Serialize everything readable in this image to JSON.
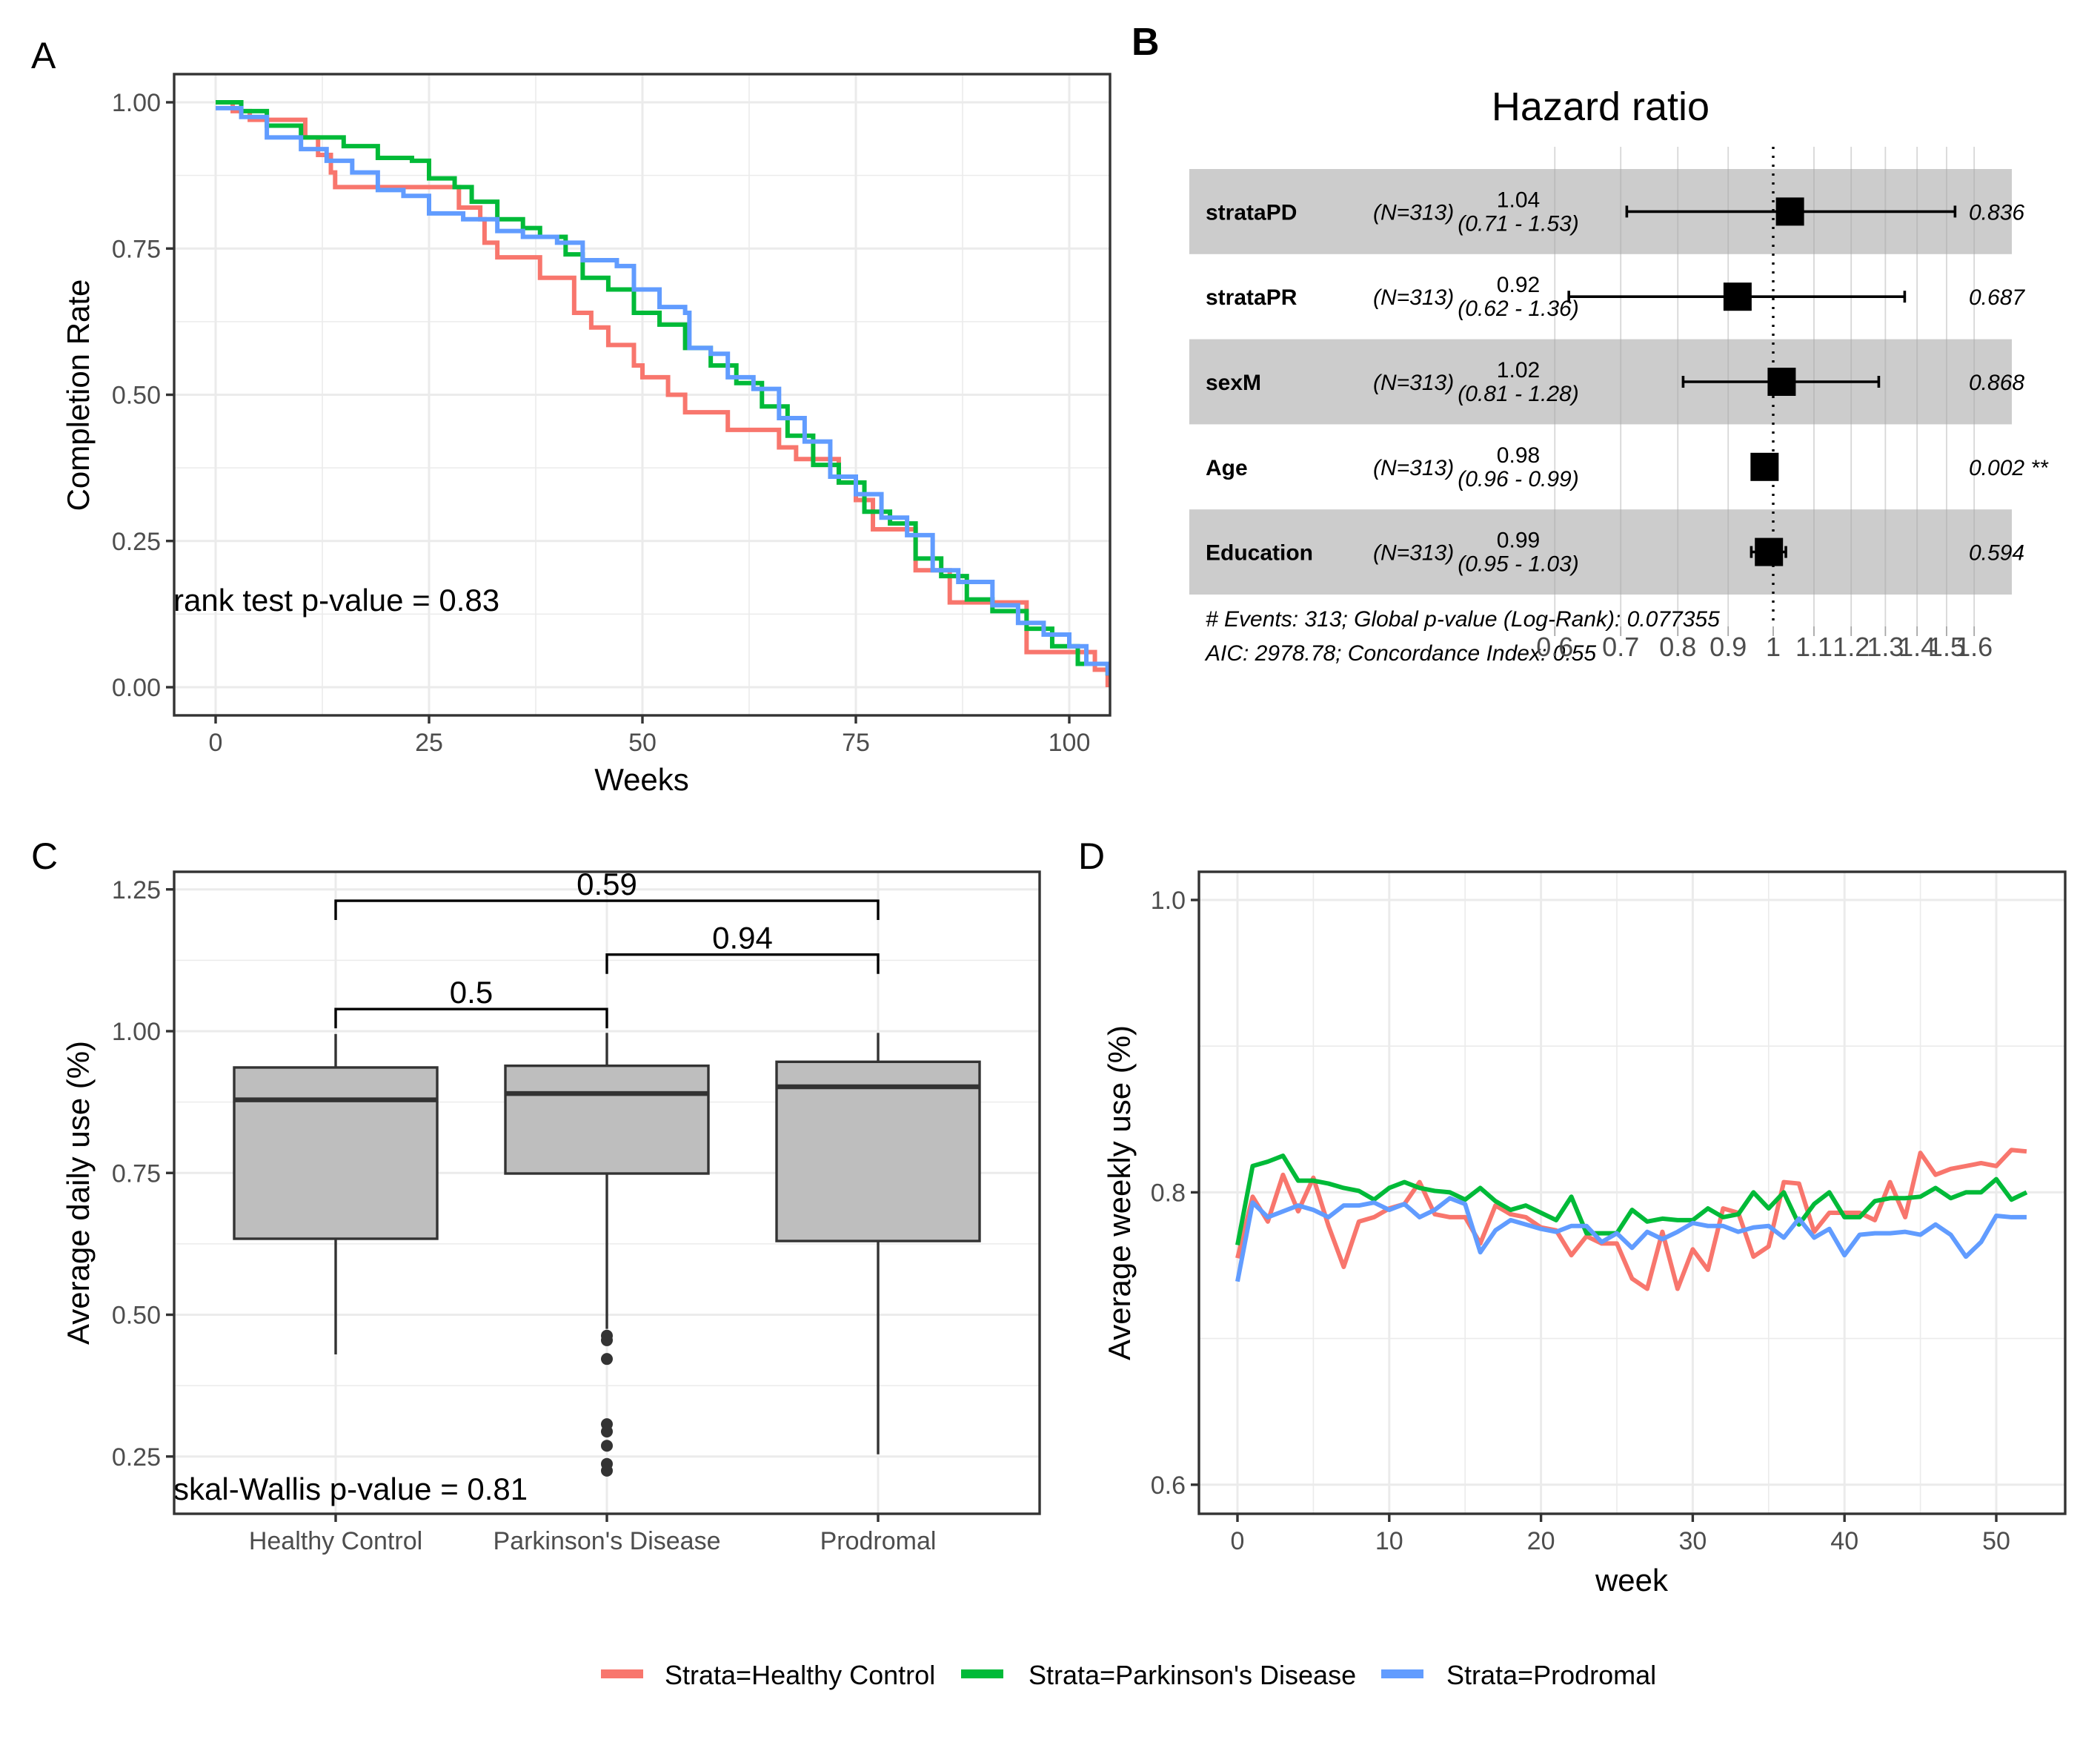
{
  "figure": {
    "panels": {
      "A": {
        "label": "A"
      },
      "B": {
        "label": "B"
      },
      "C": {
        "label": "C"
      },
      "D": {
        "label": "D"
      }
    },
    "legend": {
      "position": "bottom",
      "items": [
        {
          "label": "Strata=Healthy Control",
          "color": "#F8766D"
        },
        {
          "label": "Strata=Parkinson's Disease",
          "color": "#00BA38"
        },
        {
          "label": "Strata=Prodromal",
          "color": "#619CFF"
        }
      ]
    }
  },
  "chart_data": [
    {
      "id": "A",
      "type": "line",
      "subtype": "step (Kaplan-Meier)",
      "title": "",
      "xlabel": "Weeks",
      "ylabel": "Completion Rate",
      "xlim": [
        -5,
        105
      ],
      "ylim": [
        -0.05,
        1.03
      ],
      "xticks": [
        0,
        25,
        50,
        75,
        100
      ],
      "xtick_labels": [
        "0",
        "25",
        "50",
        "75",
        "100"
      ],
      "yticks": [
        0,
        0.25,
        0.5,
        0.75,
        1.0
      ],
      "ytick_labels": [
        "0.00",
        "0.25",
        "0.50",
        "0.75",
        "1.00"
      ],
      "grid": true,
      "annotation": "rank test p-value = 0.83",
      "series": [
        {
          "name": "Strata=Healthy Control",
          "color": "#F8766D",
          "x": [
            0,
            2,
            4,
            10,
            10.5,
            12,
            13.5,
            14,
            28,
            28.5,
            31,
            31.5,
            33,
            38,
            42,
            44,
            46,
            49,
            50,
            53,
            55,
            60,
            66,
            68,
            70,
            73,
            75,
            77,
            82,
            86,
            95,
            103,
            104.5
          ],
          "y": [
            1.0,
            0.985,
            0.97,
            0.97,
            0.94,
            0.91,
            0.88,
            0.855,
            0.855,
            0.82,
            0.8,
            0.76,
            0.735,
            0.7,
            0.64,
            0.615,
            0.585,
            0.55,
            0.53,
            0.5,
            0.47,
            0.44,
            0.41,
            0.39,
            0.39,
            0.35,
            0.32,
            0.27,
            0.2,
            0.145,
            0.06,
            0.03,
            0.0
          ]
        },
        {
          "name": "Strata=Parkinson's Disease",
          "color": "#00BA38",
          "x": [
            0,
            3,
            6,
            10,
            15,
            19,
            23,
            25,
            28,
            30,
            33,
            36,
            38,
            41,
            43,
            46,
            49,
            52,
            55,
            58,
            61,
            64,
            67,
            70,
            73,
            76,
            79,
            82,
            85,
            88,
            91,
            95,
            98,
            101,
            104.5
          ],
          "y": [
            1.0,
            0.985,
            0.96,
            0.94,
            0.925,
            0.905,
            0.9,
            0.87,
            0.855,
            0.83,
            0.8,
            0.785,
            0.77,
            0.74,
            0.7,
            0.68,
            0.64,
            0.62,
            0.58,
            0.55,
            0.52,
            0.48,
            0.43,
            0.38,
            0.35,
            0.3,
            0.28,
            0.22,
            0.19,
            0.15,
            0.13,
            0.1,
            0.07,
            0.04,
            0.02
          ]
        },
        {
          "name": "Strata=Prodromal",
          "color": "#619CFF",
          "x": [
            0,
            3,
            6,
            10,
            13,
            16,
            19,
            22,
            25,
            29,
            33,
            36,
            40,
            43,
            47,
            49,
            52,
            55,
            55.5,
            58,
            60,
            63,
            66,
            69,
            72,
            75,
            78,
            81,
            84,
            87,
            91,
            94,
            97,
            100,
            102,
            104.5
          ],
          "y": [
            0.99,
            0.975,
            0.94,
            0.92,
            0.9,
            0.88,
            0.85,
            0.84,
            0.81,
            0.8,
            0.78,
            0.77,
            0.76,
            0.73,
            0.72,
            0.68,
            0.65,
            0.64,
            0.58,
            0.57,
            0.53,
            0.51,
            0.46,
            0.42,
            0.36,
            0.33,
            0.29,
            0.26,
            0.2,
            0.18,
            0.14,
            0.11,
            0.09,
            0.07,
            0.04,
            0.02
          ]
        }
      ]
    },
    {
      "id": "B",
      "type": "forest",
      "title": "Hazard ratio",
      "x_scale": "log",
      "xlim": [
        0.6,
        1.6
      ],
      "xticks": [
        0.6,
        0.7,
        0.8,
        0.9,
        1,
        1.1,
        1.2,
        1.3,
        1.4,
        1.5,
        1.6
      ],
      "xtick_labels": [
        "0.6",
        "0.7",
        "0.8",
        "0.9",
        "1",
        "1.1",
        "1.2",
        "1.3",
        "1.4",
        "1.5",
        "1.6"
      ],
      "reference_line": 1,
      "rows": [
        {
          "variable": "strataPD",
          "n": "(N=313)",
          "hr": 1.04,
          "hr_label": "1.04",
          "ci_low": 0.71,
          "ci_high": 1.53,
          "ci_label": "(0.71 - 1.53)",
          "p": "0.836",
          "shaded": true
        },
        {
          "variable": "strataPR",
          "n": "(N=313)",
          "hr": 0.92,
          "hr_label": "0.92",
          "ci_low": 0.62,
          "ci_high": 1.36,
          "ci_label": "(0.62 - 1.36)",
          "p": "0.687",
          "shaded": false
        },
        {
          "variable": "sexM",
          "n": "(N=313)",
          "hr": 1.02,
          "hr_label": "1.02",
          "ci_low": 0.81,
          "ci_high": 1.28,
          "ci_label": "(0.81 - 1.28)",
          "p": "0.868",
          "shaded": true
        },
        {
          "variable": "Age",
          "n": "(N=313)",
          "hr": 0.98,
          "hr_label": "0.98",
          "ci_low": 0.96,
          "ci_high": 0.99,
          "ci_label": "(0.96 - 0.99)",
          "p": "0.002 **",
          "shaded": false
        },
        {
          "variable": "Education",
          "n": "(N=313)",
          "hr": 0.99,
          "hr_label": "0.99",
          "ci_low": 0.95,
          "ci_high": 1.03,
          "ci_label": "(0.95 - 1.03)",
          "p": "0.594",
          "shaded": true
        }
      ],
      "footer": [
        "# Events: 313; Global p-value (Log-Rank): 0.077355",
        "AIC: 2978.78; Concordance Index: 0.55"
      ]
    },
    {
      "id": "C",
      "type": "box",
      "xlabel": "",
      "ylabel": "Average daily use (%)",
      "ylim": [
        0.16,
        1.28
      ],
      "yticks": [
        0.25,
        0.5,
        0.75,
        1.0,
        1.25
      ],
      "ytick_labels": [
        "0.25",
        "0.50",
        "0.75",
        "1.00",
        "1.25"
      ],
      "grid": true,
      "categories": [
        "Healthy Control",
        "Parkinson's Disease",
        "Prodromal"
      ],
      "boxes": [
        {
          "category": "Healthy Control",
          "whisker_low": 0.43,
          "q1": 0.634,
          "median": 0.879,
          "q3": 0.936,
          "whisker_high": 0.995,
          "outliers": []
        },
        {
          "category": "Parkinson's Disease",
          "whisker_low": 0.475,
          "q1": 0.749,
          "median": 0.89,
          "q3": 0.939,
          "whisker_high": 0.997,
          "outliers": [
            0.463,
            0.455,
            0.422,
            0.307,
            0.294,
            0.269,
            0.237,
            0.225
          ]
        },
        {
          "category": "Prodromal",
          "whisker_low": 0.254,
          "q1": 0.63,
          "median": 0.902,
          "q3": 0.946,
          "whisker_high": 0.997,
          "outliers": []
        }
      ],
      "comparisons": [
        {
          "from": 0,
          "to": 2,
          "label": "0.59",
          "y": 1.23
        },
        {
          "from": 1,
          "to": 2,
          "label": "0.94",
          "y": 1.135
        },
        {
          "from": 0,
          "to": 1,
          "label": "0.5",
          "y": 1.039
        }
      ],
      "annotation": "skal-Wallis p-value = 0.81"
    },
    {
      "id": "D",
      "type": "line",
      "xlabel": "week",
      "ylabel": "Average weekly use (%)",
      "xlim": [
        -2.6,
        54.6
      ],
      "ylim": [
        0.58,
        1.02
      ],
      "xticks": [
        0,
        10,
        20,
        30,
        40,
        50
      ],
      "xtick_labels": [
        "0",
        "10",
        "20",
        "30",
        "40",
        "50"
      ],
      "yticks": [
        0.6,
        0.8,
        1.0
      ],
      "ytick_labels": [
        "0.6",
        "0.8",
        "1.0"
      ],
      "grid": true,
      "x": [
        0,
        1,
        2,
        3,
        4,
        5,
        6,
        7,
        8,
        9,
        10,
        11,
        12,
        13,
        14,
        15,
        16,
        17,
        18,
        19,
        20,
        21,
        22,
        23,
        24,
        25,
        26,
        27,
        28,
        29,
        30,
        31,
        32,
        33,
        34,
        35,
        36,
        37,
        38,
        39,
        40,
        41,
        42,
        43,
        44,
        45,
        46,
        47,
        48,
        49,
        50,
        51,
        52
      ],
      "series": [
        {
          "name": "Strata=Healthy Control",
          "color": "#F8766D",
          "values": [
            0.755,
            0.797,
            0.78,
            0.812,
            0.787,
            0.81,
            0.777,
            0.749,
            0.78,
            0.783,
            0.789,
            0.792,
            0.807,
            0.785,
            0.783,
            0.783,
            0.765,
            0.791,
            0.785,
            0.783,
            0.776,
            0.774,
            0.757,
            0.77,
            0.765,
            0.765,
            0.741,
            0.734,
            0.773,
            0.734,
            0.761,
            0.747,
            0.789,
            0.786,
            0.756,
            0.763,
            0.807,
            0.806,
            0.773,
            0.786,
            0.786,
            0.786,
            0.781,
            0.807,
            0.783,
            0.827,
            0.812,
            0.816,
            0.818,
            0.82,
            0.818,
            0.829,
            0.828
          ]
        },
        {
          "name": "Strata=Parkinson's Disease",
          "color": "#00BA38",
          "values": [
            0.764,
            0.818,
            0.821,
            0.825,
            0.808,
            0.808,
            0.806,
            0.803,
            0.801,
            0.795,
            0.803,
            0.807,
            0.803,
            0.801,
            0.8,
            0.795,
            0.803,
            0.794,
            0.788,
            0.791,
            0.786,
            0.781,
            0.797,
            0.772,
            0.772,
            0.772,
            0.788,
            0.78,
            0.782,
            0.781,
            0.781,
            0.789,
            0.783,
            0.785,
            0.8,
            0.789,
            0.8,
            0.778,
            0.792,
            0.8,
            0.783,
            0.783,
            0.794,
            0.796,
            0.796,
            0.797,
            0.803,
            0.796,
            0.8,
            0.8,
            0.809,
            0.795,
            0.8
          ]
        },
        {
          "name": "Strata=Prodromal",
          "color": "#619CFF",
          "values": [
            0.739,
            0.793,
            0.783,
            0.787,
            0.791,
            0.788,
            0.783,
            0.791,
            0.791,
            0.793,
            0.788,
            0.792,
            0.783,
            0.788,
            0.796,
            0.792,
            0.759,
            0.774,
            0.781,
            0.778,
            0.775,
            0.773,
            0.777,
            0.777,
            0.766,
            0.772,
            0.762,
            0.773,
            0.768,
            0.773,
            0.779,
            0.777,
            0.777,
            0.773,
            0.776,
            0.777,
            0.769,
            0.782,
            0.769,
            0.775,
            0.757,
            0.771,
            0.772,
            0.772,
            0.773,
            0.771,
            0.778,
            0.771,
            0.756,
            0.766,
            0.784,
            0.783,
            0.783
          ]
        }
      ]
    }
  ]
}
